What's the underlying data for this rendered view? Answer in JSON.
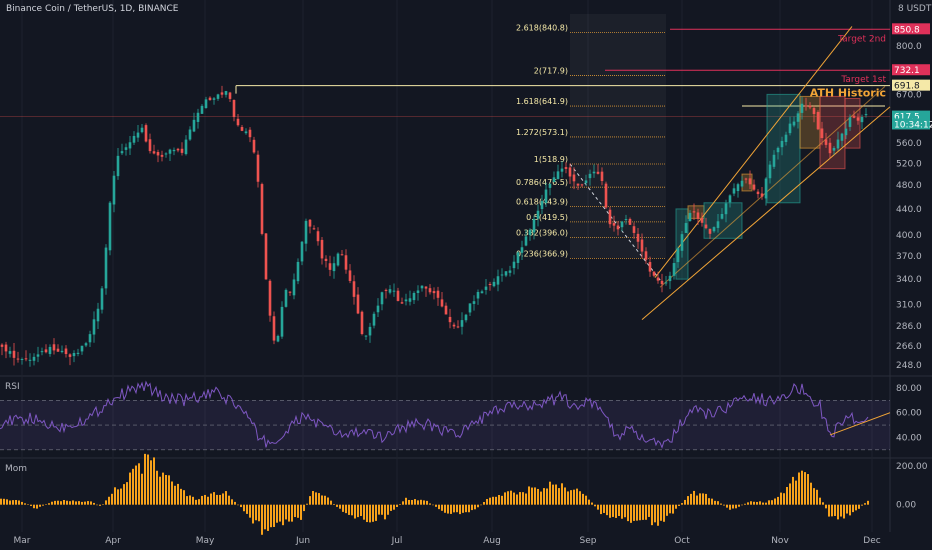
{
  "header": {
    "title": "Binance Coin / TetherUS, 1D, BINANCE"
  },
  "chart_data": [
    {
      "type": "candlestick",
      "name": "price",
      "y_unit": "USDT",
      "yscale": "log",
      "ylim": [
        240,
        900
      ],
      "y_ticks": [
        248.0,
        266.0,
        286.0,
        310.0,
        340.0,
        370.0,
        400.0,
        440.0,
        480.0,
        520.0,
        560.0,
        617.5,
        670.0,
        800.0
      ],
      "x_ticks": [
        "Mar",
        "Apr",
        "May",
        "Jun",
        "Jul",
        "Aug",
        "Sep",
        "Oct",
        "Nov",
        "Dec"
      ],
      "price_path": [
        [
          0,
          270
        ],
        [
          15,
          258
        ],
        [
          30,
          252
        ],
        [
          45,
          258
        ],
        [
          55,
          265
        ],
        [
          65,
          262
        ],
        [
          75,
          255
        ],
        [
          85,
          262
        ],
        [
          95,
          278
        ],
        [
          105,
          320
        ],
        [
          110,
          380
        ],
        [
          115,
          470
        ],
        [
          120,
          520
        ],
        [
          125,
          545
        ],
        [
          135,
          560
        ],
        [
          145,
          600
        ],
        [
          150,
          560
        ],
        [
          160,
          530
        ],
        [
          175,
          545
        ],
        [
          185,
          540
        ],
        [
          195,
          590
        ],
        [
          205,
          640
        ],
        [
          215,
          665
        ],
        [
          225,
          668
        ],
        [
          232,
          675
        ],
        [
          237,
          620
        ],
        [
          245,
          590
        ],
        [
          255,
          570
        ],
        [
          260,
          530
        ],
        [
          265,
          420
        ],
        [
          270,
          340
        ],
        [
          275,
          285
        ],
        [
          280,
          260
        ],
        [
          285,
          300
        ],
        [
          290,
          330
        ],
        [
          295,
          320
        ],
        [
          302,
          360
        ],
        [
          310,
          420
        ],
        [
          318,
          410
        ],
        [
          325,
          370
        ],
        [
          335,
          350
        ],
        [
          345,
          380
        ],
        [
          355,
          330
        ],
        [
          362,
          300
        ],
        [
          368,
          270
        ],
        [
          375,
          290
        ],
        [
          385,
          320
        ],
        [
          395,
          330
        ],
        [
          405,
          310
        ],
        [
          415,
          320
        ],
        [
          425,
          330
        ],
        [
          435,
          325
        ],
        [
          445,
          310
        ],
        [
          455,
          290
        ],
        [
          460,
          280
        ],
        [
          470,
          300
        ],
        [
          480,
          320
        ],
        [
          490,
          330
        ],
        [
          505,
          345
        ],
        [
          515,
          355
        ],
        [
          525,
          380
        ],
        [
          535,
          410
        ],
        [
          545,
          450
        ],
        [
          552,
          480
        ],
        [
          560,
          500
        ],
        [
          568,
          515
        ],
        [
          575,
          490
        ],
        [
          585,
          480
        ],
        [
          595,
          500
        ],
        [
          605,
          500
        ],
        [
          608,
          460
        ],
        [
          612,
          420
        ],
        [
          620,
          410
        ],
        [
          630,
          420
        ],
        [
          640,
          400
        ],
        [
          648,
          370
        ],
        [
          655,
          350
        ],
        [
          662,
          335
        ],
        [
          667,
          330
        ],
        [
          672,
          340
        ],
        [
          680,
          370
        ],
        [
          688,
          410
        ],
        [
          695,
          440
        ],
        [
          705,
          420
        ],
        [
          715,
          400
        ],
        [
          725,
          430
        ],
        [
          735,
          470
        ],
        [
          745,
          490
        ],
        [
          752,
          485
        ],
        [
          760,
          470
        ],
        [
          767,
          460
        ],
        [
          772,
          510
        ],
        [
          780,
          540
        ],
        [
          790,
          580
        ],
        [
          800,
          620
        ],
        [
          808,
          650
        ],
        [
          815,
          640
        ],
        [
          822,
          590
        ],
        [
          828,
          560
        ],
        [
          835,
          540
        ],
        [
          840,
          560
        ],
        [
          848,
          580
        ],
        [
          855,
          620
        ],
        [
          862,
          610
        ],
        [
          868,
          617.5
        ]
      ],
      "fibonacci": [
        {
          "label": "2.618(840.8)",
          "value": 840.8
        },
        {
          "label": "2(717.9)",
          "value": 717.9
        },
        {
          "label": "1.618(641.9)",
          "value": 641.9
        },
        {
          "label": "1.272(573.1)",
          "value": 573.1
        },
        {
          "label": "1(518.9)",
          "value": 518.9
        },
        {
          "label": "0.786(476.5)",
          "value": 476.5
        },
        {
          "label": "0.618(443.9)",
          "value": 443.9
        },
        {
          "label": "0.5(419.5)",
          "value": 419.5
        },
        {
          "label": "0.382(396.0)",
          "value": 396.0
        },
        {
          "label": "0.236(366.9)",
          "value": 366.9
        }
      ],
      "price_tags": [
        {
          "text": "850.8",
          "value": 850.8,
          "color": "#e0315a"
        },
        {
          "text": "732.1",
          "value": 732.1,
          "color": "#e0315a"
        },
        {
          "text": "691.8",
          "value": 691.8,
          "color": "#f5e9a8"
        },
        {
          "text": "617.5",
          "value": 617.5,
          "color": "#26a69a"
        },
        {
          "text": "10:34:12",
          "value": 600.0,
          "color": "#26a69a"
        }
      ],
      "annotations": [
        {
          "text": "Target 2nd",
          "value": 850.8,
          "color": "#e0315a"
        },
        {
          "text": "Target 1st",
          "value": 732.1,
          "color": "#e0315a"
        },
        {
          "text": "ATH Historic",
          "value": 665.0,
          "color": "#f0a437"
        }
      ],
      "ath_value": 691.8,
      "colors": {
        "up": "#26a69a",
        "down": "#ef5350",
        "fib": "#f0a437",
        "channel": "#f0a437",
        "target": "#e0315a"
      }
    },
    {
      "type": "line",
      "name": "RSI",
      "title": "RSI",
      "ylim": [
        25,
        88
      ],
      "y_ticks": [
        40.0,
        60.0,
        80.0
      ],
      "bands": [
        30,
        70
      ],
      "path": [
        [
          0,
          52
        ],
        [
          30,
          55
        ],
        [
          60,
          48
        ],
        [
          90,
          56
        ],
        [
          110,
          70
        ],
        [
          130,
          78
        ],
        [
          145,
          82
        ],
        [
          160,
          74
        ],
        [
          180,
          70
        ],
        [
          200,
          72
        ],
        [
          215,
          76
        ],
        [
          230,
          70
        ],
        [
          245,
          60
        ],
        [
          260,
          38
        ],
        [
          275,
          35
        ],
        [
          290,
          48
        ],
        [
          305,
          58
        ],
        [
          320,
          50
        ],
        [
          340,
          42
        ],
        [
          360,
          44
        ],
        [
          380,
          40
        ],
        [
          400,
          48
        ],
        [
          420,
          52
        ],
        [
          440,
          47
        ],
        [
          460,
          42
        ],
        [
          480,
          55
        ],
        [
          500,
          62
        ],
        [
          520,
          66
        ],
        [
          540,
          68
        ],
        [
          560,
          72
        ],
        [
          575,
          66
        ],
        [
          590,
          68
        ],
        [
          605,
          60
        ],
        [
          615,
          42
        ],
        [
          630,
          45
        ],
        [
          645,
          38
        ],
        [
          660,
          33
        ],
        [
          672,
          40
        ],
        [
          690,
          62
        ],
        [
          710,
          58
        ],
        [
          730,
          66
        ],
        [
          750,
          72
        ],
        [
          770,
          70
        ],
        [
          790,
          78
        ],
        [
          800,
          80
        ],
        [
          810,
          72
        ],
        [
          820,
          65
        ],
        [
          830,
          42
        ],
        [
          840,
          50
        ],
        [
          850,
          58
        ],
        [
          858,
          52
        ],
        [
          868,
          56
        ]
      ],
      "trendline": [
        [
          830,
          42
        ],
        [
          890,
          60
        ]
      ],
      "color": "#7e57c2"
    },
    {
      "type": "bar",
      "name": "Mom",
      "title": "Mom",
      "ylim": [
        -120,
        230
      ],
      "y_ticks": [
        0.0,
        200.0
      ],
      "path": [
        [
          0,
          30
        ],
        [
          20,
          20
        ],
        [
          35,
          -20
        ],
        [
          55,
          25
        ],
        [
          75,
          20
        ],
        [
          90,
          15
        ],
        [
          100,
          -10
        ],
        [
          115,
          80
        ],
        [
          130,
          150
        ],
        [
          145,
          220
        ],
        [
          160,
          180
        ],
        [
          180,
          70
        ],
        [
          195,
          30
        ],
        [
          210,
          50
        ],
        [
          225,
          60
        ],
        [
          245,
          -40
        ],
        [
          265,
          -150
        ],
        [
          280,
          -90
        ],
        [
          300,
          -80
        ],
        [
          310,
          60
        ],
        [
          325,
          40
        ],
        [
          345,
          -50
        ],
        [
          365,
          -80
        ],
        [
          385,
          -60
        ],
        [
          405,
          30
        ],
        [
          425,
          20
        ],
        [
          445,
          -40
        ],
        [
          460,
          -50
        ],
        [
          475,
          -20
        ],
        [
          490,
          40
        ],
        [
          510,
          60
        ],
        [
          530,
          80
        ],
        [
          550,
          100
        ],
        [
          565,
          90
        ],
        [
          580,
          70
        ],
        [
          600,
          -40
        ],
        [
          620,
          -80
        ],
        [
          640,
          -70
        ],
        [
          660,
          -100
        ],
        [
          672,
          -40
        ],
        [
          690,
          60
        ],
        [
          710,
          40
        ],
        [
          730,
          -30
        ],
        [
          750,
          20
        ],
        [
          765,
          10
        ],
        [
          780,
          60
        ],
        [
          795,
          150
        ],
        [
          802,
          200
        ],
        [
          810,
          120
        ],
        [
          820,
          40
        ],
        [
          830,
          -80
        ],
        [
          845,
          -60
        ],
        [
          858,
          -20
        ],
        [
          868,
          30
        ]
      ],
      "color_up": "#f7a21b",
      "color_down": "#f7a21b"
    }
  ]
}
